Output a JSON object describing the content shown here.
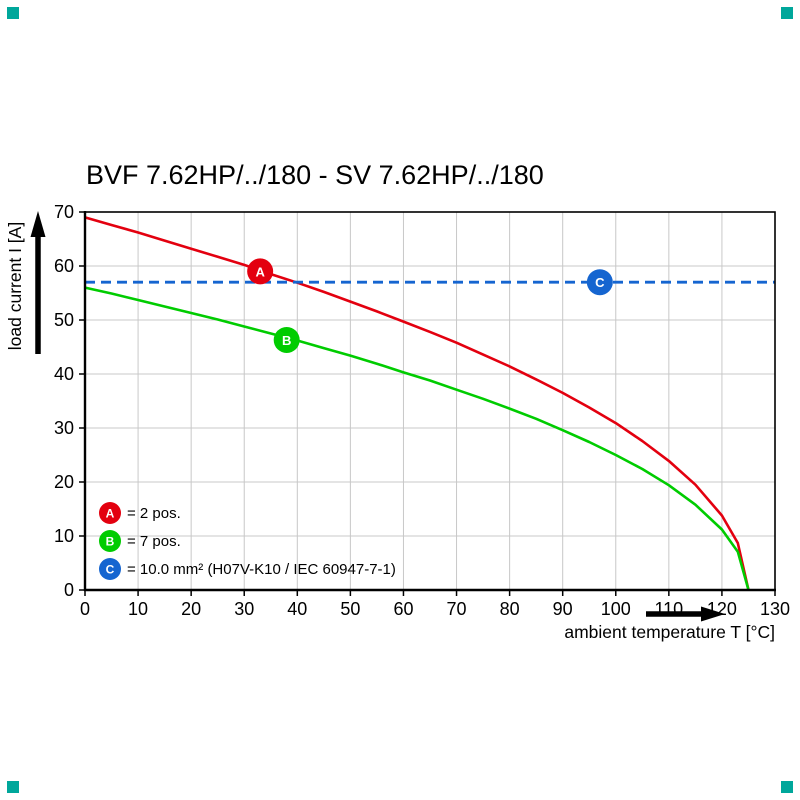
{
  "page": {
    "corner_mark_color": "#00a79b"
  },
  "chart_data": {
    "type": "line",
    "title": "BVF 7.62HP/../180 - SV 7.62HP/../180",
    "xlabel": "ambient temperature T [°C]",
    "ylabel": "load current I [A]",
    "xlim": [
      0,
      130
    ],
    "ylim": [
      0,
      70
    ],
    "xticks": [
      0,
      10,
      20,
      30,
      40,
      50,
      60,
      70,
      80,
      90,
      100,
      110,
      120,
      130
    ],
    "yticks": [
      0,
      10,
      20,
      30,
      40,
      50,
      60,
      70
    ],
    "grid": true,
    "grid_color": "#c8c8c8",
    "axis_color": "#000000",
    "series": [
      {
        "name": "A",
        "color": "#e3000f",
        "line_style": "solid",
        "points": [
          [
            0,
            69
          ],
          [
            5,
            67.6
          ],
          [
            10,
            66.2
          ],
          [
            15,
            64.7
          ],
          [
            20,
            63.2
          ],
          [
            25,
            61.7
          ],
          [
            30,
            60.2
          ],
          [
            35,
            58.5
          ],
          [
            40,
            56.9
          ],
          [
            45,
            55.2
          ],
          [
            50,
            53.4
          ],
          [
            55,
            51.6
          ],
          [
            60,
            49.7
          ],
          [
            65,
            47.8
          ],
          [
            70,
            45.8
          ],
          [
            75,
            43.6
          ],
          [
            80,
            41.4
          ],
          [
            85,
            39
          ],
          [
            90,
            36.5
          ],
          [
            95,
            33.8
          ],
          [
            100,
            30.9
          ],
          [
            105,
            27.6
          ],
          [
            110,
            23.9
          ],
          [
            115,
            19.5
          ],
          [
            120,
            13.8
          ],
          [
            123,
            8.7
          ],
          [
            125,
            0
          ]
        ]
      },
      {
        "name": "B",
        "color": "#00cc00",
        "line_style": "solid",
        "points": [
          [
            0,
            56
          ],
          [
            5,
            54.9
          ],
          [
            10,
            53.7
          ],
          [
            15,
            52.5
          ],
          [
            20,
            51.3
          ],
          [
            25,
            50.1
          ],
          [
            30,
            48.8
          ],
          [
            35,
            47.5
          ],
          [
            40,
            46.2
          ],
          [
            45,
            44.8
          ],
          [
            50,
            43.4
          ],
          [
            55,
            41.9
          ],
          [
            60,
            40.3
          ],
          [
            65,
            38.8
          ],
          [
            70,
            37.1
          ],
          [
            75,
            35.4
          ],
          [
            80,
            33.6
          ],
          [
            85,
            31.7
          ],
          [
            90,
            29.6
          ],
          [
            95,
            27.4
          ],
          [
            100,
            25
          ],
          [
            105,
            22.4
          ],
          [
            110,
            19.4
          ],
          [
            115,
            15.8
          ],
          [
            120,
            11.2
          ],
          [
            123,
            7.1
          ],
          [
            125,
            0
          ]
        ]
      },
      {
        "name": "C",
        "color": "#1565d0",
        "line_style": "dashed",
        "points": [
          [
            0,
            57
          ],
          [
            130,
            57
          ]
        ]
      }
    ],
    "markers": [
      {
        "label": "A",
        "x": 33,
        "y": 59
      },
      {
        "label": "B",
        "x": 38,
        "y": 46.3
      },
      {
        "label": "C",
        "x": 97,
        "y": 57
      }
    ],
    "legend": {
      "position": "inside-bottom-left",
      "items": [
        {
          "key": "A",
          "label": "= 2 pos."
        },
        {
          "key": "B",
          "label": "= 7 pos."
        },
        {
          "key": "C",
          "label": "= 10.0 mm² (H07V-K10 / IEC 60947-7-1)"
        }
      ]
    }
  }
}
